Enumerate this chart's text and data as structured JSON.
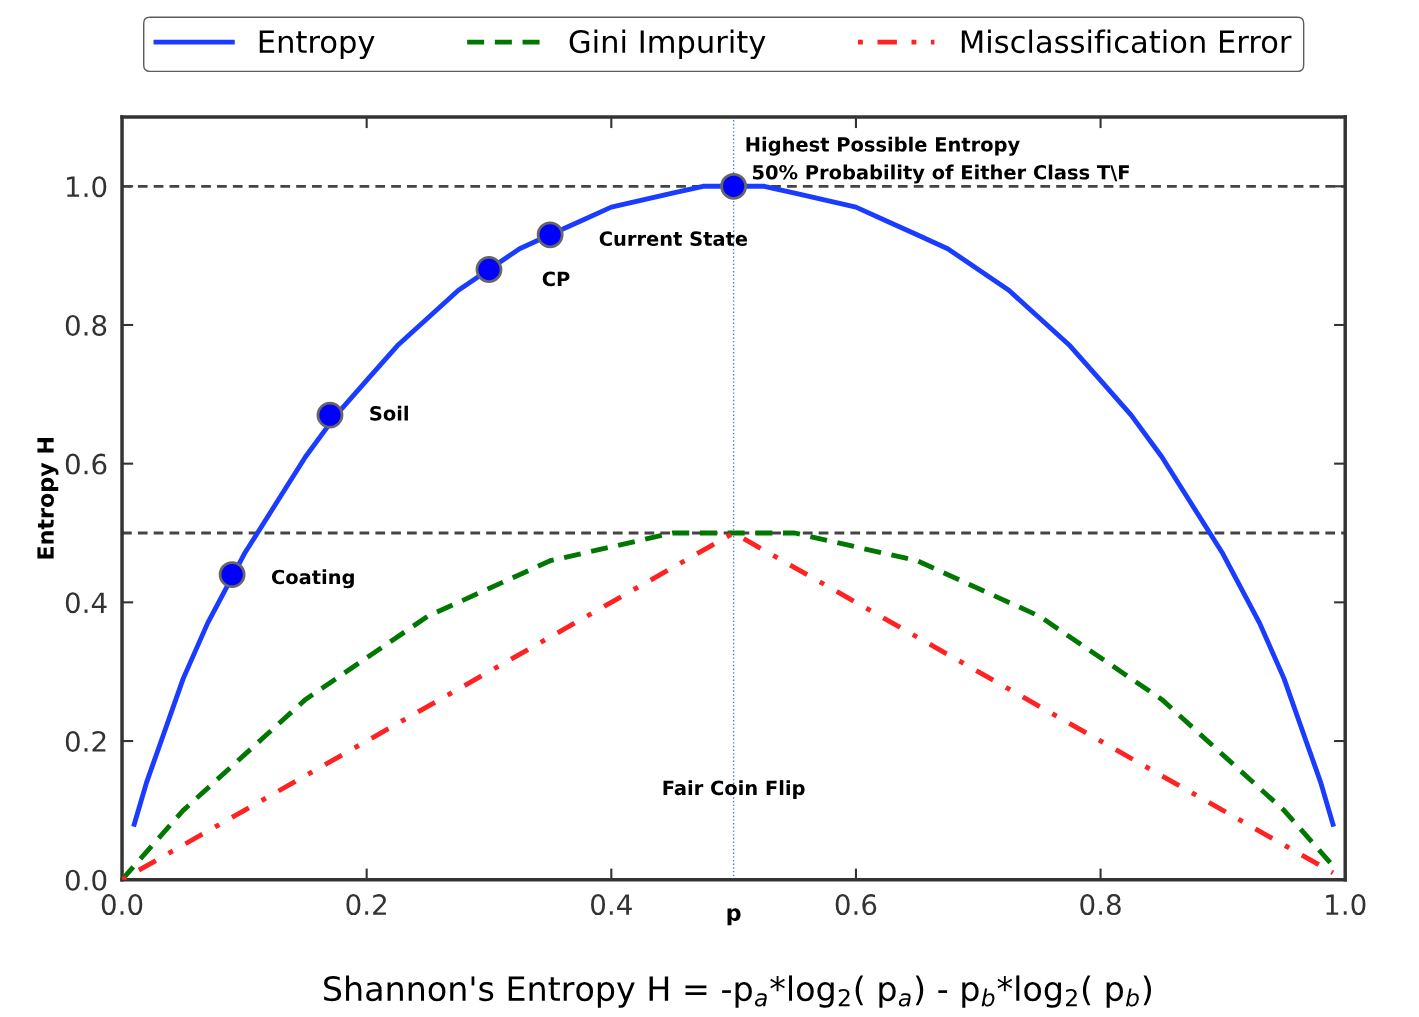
{
  "chart_data": {
    "type": "line",
    "title": "Shannon's Entropy H = -p$_{a}$*log$_{2}$( p$_{a}$) - p$_{b}$*log$_{2}$( p$_{b}$)",
    "xlabel": "p",
    "ylabel": "Entropy H",
    "xlim": [
      0,
      1
    ],
    "ylim": [
      0,
      1.1
    ],
    "xticks": [
      {
        "value": 0,
        "label": "0.0"
      },
      {
        "value": 0.2,
        "label": "0.2"
      },
      {
        "value": 0.4,
        "label": "0.4"
      },
      {
        "value": 0.6,
        "label": "0.6"
      },
      {
        "value": 0.8,
        "label": "0.8"
      },
      {
        "value": 1,
        "label": "1.0"
      }
    ],
    "yticks": [
      {
        "value": 0,
        "label": "0.0"
      },
      {
        "value": 0.2,
        "label": "0.2"
      },
      {
        "value": 0.4,
        "label": "0.4"
      },
      {
        "value": 0.6,
        "label": "0.6"
      },
      {
        "value": 0.8,
        "label": "0.8"
      },
      {
        "value": 1,
        "label": "1.0"
      }
    ],
    "grid": false,
    "legend": "top",
    "series": [
      {
        "name": "Entropy",
        "color": "#1a3cff",
        "line_style": "solid",
        "marker": "none",
        "x": [
          0.01,
          0.02,
          0.03,
          0.05,
          0.07,
          0.1,
          0.125,
          0.15,
          0.175,
          0.2,
          0.225,
          0.25,
          0.275,
          0.3,
          0.325,
          0.35,
          0.375,
          0.4,
          0.425,
          0.45,
          0.475,
          0.5,
          0.525,
          0.55,
          0.575,
          0.6,
          0.625,
          0.65,
          0.675,
          0.7,
          0.725,
          0.75,
          0.775,
          0.8,
          0.825,
          0.85,
          0.875,
          0.9,
          0.93,
          0.95,
          0.97,
          0.98,
          0.99
        ],
        "values": [
          0.08,
          0.14,
          0.19,
          0.29,
          0.37,
          0.47,
          0.54,
          0.61,
          0.67,
          0.72,
          0.77,
          0.81,
          0.85,
          0.88,
          0.91,
          0.93,
          0.95,
          0.97,
          0.98,
          0.99,
          1.0,
          1.0,
          1.0,
          0.99,
          0.98,
          0.97,
          0.95,
          0.93,
          0.91,
          0.88,
          0.85,
          0.81,
          0.77,
          0.72,
          0.67,
          0.61,
          0.54,
          0.47,
          0.37,
          0.29,
          0.19,
          0.14,
          0.08
        ]
      },
      {
        "name": "Gini Impurity",
        "color": "#007700",
        "line_style": "dashed",
        "marker": "none",
        "x": [
          0,
          0.05,
          0.1,
          0.15,
          0.2,
          0.25,
          0.3,
          0.35,
          0.4,
          0.45,
          0.5,
          0.55,
          0.6,
          0.65,
          0.7,
          0.75,
          0.8,
          0.85,
          0.9,
          0.95,
          0.99
        ],
        "values": [
          0,
          0.1,
          0.18,
          0.26,
          0.32,
          0.38,
          0.42,
          0.46,
          0.48,
          0.5,
          0.5,
          0.5,
          0.48,
          0.46,
          0.42,
          0.38,
          0.32,
          0.26,
          0.18,
          0.1,
          0.02
        ]
      },
      {
        "name": "Misclassification Error",
        "color": "#ff2222",
        "line_style": "dashdot",
        "marker": "none",
        "x": [
          0,
          0.5,
          0.99
        ],
        "values": [
          0,
          0.5,
          0.01
        ]
      },
      {
        "type": "scatter",
        "color": "#0000ff",
        "marker": "circle",
        "x": [
          0.09,
          0.17,
          0.3,
          0.35,
          0.5
        ],
        "values": [
          0.44,
          0.67,
          0.88,
          0.93,
          1.0
        ]
      }
    ],
    "ref_lines": [
      {
        "axis": "y",
        "value": 1.0,
        "color": "#444444",
        "line_style": "dashed"
      },
      {
        "axis": "y",
        "value": 0.5,
        "color": "#444444",
        "line_style": "dashed"
      },
      {
        "axis": "x",
        "value": 0.5,
        "color": "#4a7fd0",
        "line_style": "dotted"
      }
    ],
    "annotations": [
      {
        "text": "Highest Possible Entropy\n 50% Probability of Either Class T\\F",
        "x": 0.5,
        "y": 1.0
      },
      {
        "text": "Current State",
        "x": 0.35,
        "y": 0.93
      },
      {
        "text": "CP",
        "x": 0.3,
        "y": 0.88
      },
      {
        "text": "Soil",
        "x": 0.17,
        "y": 0.67
      },
      {
        "text": "Coating",
        "x": 0.09,
        "y": 0.44
      },
      {
        "text": "Fair Coin Flip",
        "x": 0.5,
        "y": 0.13
      }
    ]
  }
}
